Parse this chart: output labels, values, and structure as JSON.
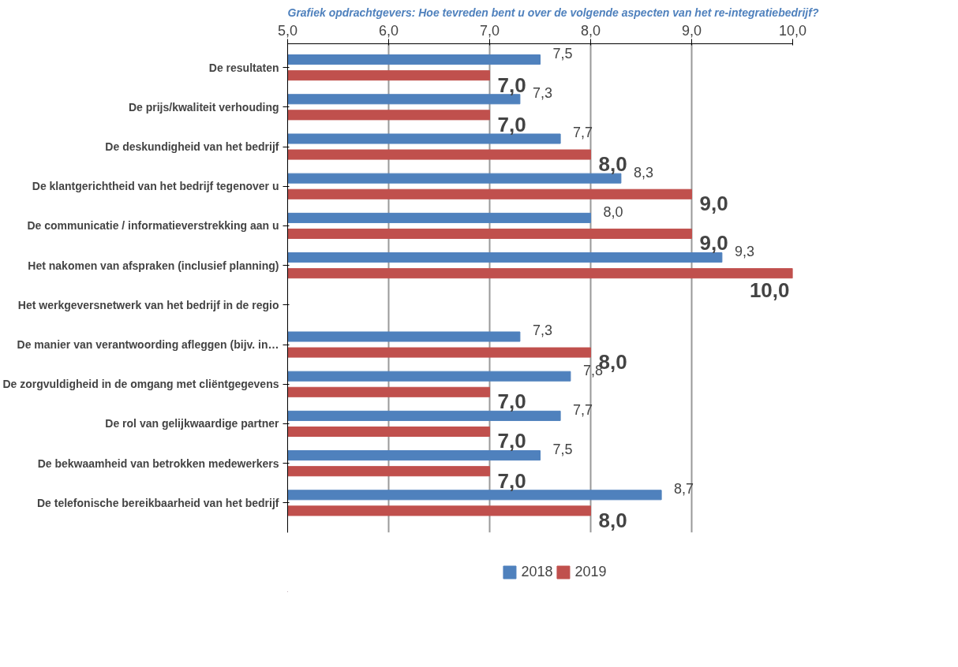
{
  "chart_data": {
    "type": "bar",
    "orientation": "horizontal",
    "title": "Grafiek opdrachtgevers: Hoe tevreden bent u over de volgende aspecten van het re-integratiebedrijf?",
    "categories": [
      "De resultaten",
      "De prijs/kwaliteit verhouding",
      "De deskundigheid van het bedrijf",
      "De klantgerichtheid van het bedrijf tegenover u",
      "De communicatie / informatieverstrekking aan u",
      "Het nakomen van afspraken (inclusief planning)",
      "Het werkgeversnetwerk van het bedrijf in de regio",
      "De manier van verantwoording afleggen (bijv. in…",
      "De zorgvuldigheid in de omgang met cliëntgegevens",
      "De rol van gelijkwaardige partner",
      "De bekwaamheid van betrokken medewerkers",
      "De telefonische bereikbaarheid van het bedrijf"
    ],
    "series": [
      {
        "name": "2018",
        "color": "#4f81bd",
        "values": [
          7.5,
          7.3,
          7.7,
          8.3,
          8.0,
          9.3,
          null,
          7.3,
          7.8,
          7.7,
          7.5,
          8.7
        ],
        "value_labels": [
          "7,5",
          "7,3",
          "7,7",
          "8,3",
          "8,0",
          "9,3",
          null,
          "7,3",
          "7,8",
          "7,7",
          "7,5",
          "8,7"
        ]
      },
      {
        "name": "2019",
        "color": "#c0504d",
        "values": [
          7.0,
          7.0,
          8.0,
          9.0,
          9.0,
          10.0,
          null,
          8.0,
          7.0,
          7.0,
          7.0,
          8.0
        ],
        "value_labels": [
          "7,0",
          "7,0",
          "8,0",
          "9,0",
          "9,0",
          "10,0",
          null,
          "8,0",
          "7,0",
          "7,0",
          "7,0",
          "8,0"
        ]
      }
    ],
    "xlim": [
      5,
      10
    ],
    "xticks": [
      {
        "value": 5,
        "label": "5,0"
      },
      {
        "value": 6,
        "label": "6,0"
      },
      {
        "value": 7,
        "label": "7,0"
      },
      {
        "value": 8,
        "label": "8,0"
      },
      {
        "value": 9,
        "label": "9,0"
      },
      {
        "value": 10,
        "label": "10,0"
      }
    ],
    "grid": "x",
    "legend": "bottom"
  }
}
